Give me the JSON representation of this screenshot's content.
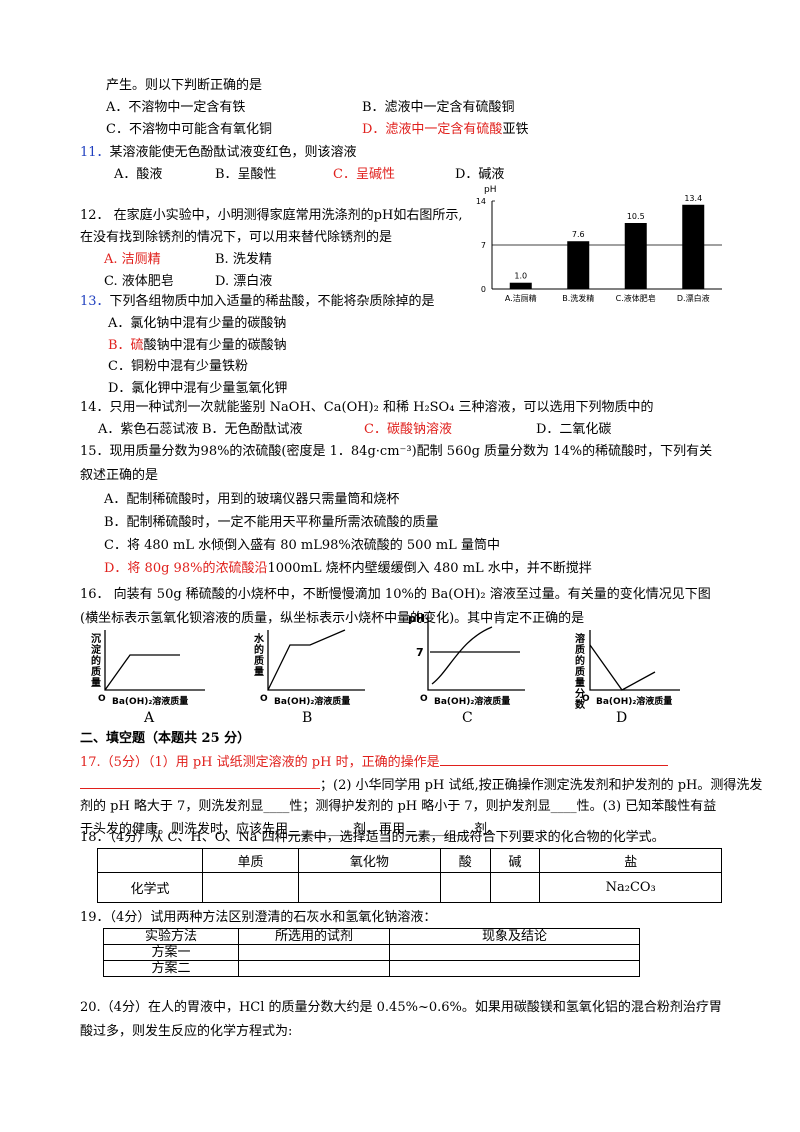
{
  "q10": {
    "tail": "产生。则以下判断正确的是",
    "options": [
      "A．不溶物中一定含有铁",
      "B．滤液中一定含有硫酸铜",
      "C．不溶物中可能含有氧化铜"
    ],
    "option_d_red": "D．滤液中一定含有硫酸",
    "option_d_rest": "亚铁"
  },
  "q11": {
    "number": "11．",
    "stem": "某溶液能使无色酚酞试液变红色，则该溶液",
    "options": [
      "A．酸液",
      "B．呈酸性",
      "C．呈碱性",
      "D．碱液"
    ]
  },
  "q12": {
    "stem": [
      "12． 在家庭小实验中，小明测得家庭常用洗涤剂的pH如右图所示,",
      "在没有找到除锈剂的情况下，可以用来替代除锈剂的是"
    ],
    "options": [
      "A. 洁厕精",
      "B. 洗发精",
      "C. 液体肥皂",
      "D. 漂白液"
    ],
    "chart": {
      "type": "bar",
      "y_label": "pH",
      "categories": [
        "A.洁厕精",
        "B.洗发精",
        "C.液体肥皂",
        "D.漂白液"
      ],
      "values": [
        1.0,
        7.6,
        10.5,
        13.4
      ],
      "value_labels": [
        "1.0",
        "7.6",
        "10.5",
        "13.4"
      ],
      "ylim": [
        0,
        14
      ],
      "yticks": [
        0,
        7,
        14
      ],
      "color": "#000000"
    }
  },
  "q13": {
    "number": "13．",
    "stem": "下列各组物质中加入适量的稀盐酸，不能将杂质除掉的是",
    "option_a": "A．氯化钠中混有少量的碳酸钠",
    "option_b_red": "B．硫",
    "option_b_rest": "酸钠中混有少量的碳酸钠",
    "option_c": "C．铜粉中混有少量铁粉",
    "option_d": "D．氯化钾中混有少量氢氧化钾"
  },
  "q14": {
    "stem": "14．只用一种试剂一次就能鉴别 NaOH、Ca(OH)₂ 和稀 H₂SO₄ 三种溶液，可以选用下列物质中的",
    "options": [
      "A．紫色石蕊试液",
      "B．无色酚酞试液",
      "C．碳酸钠溶液",
      "D．二氧化碳"
    ]
  },
  "q15": {
    "stem": [
      "15．现用质量分数为98%的浓硫酸(密度是 1．84g·cm⁻³)配制 560g 质量分数为 14%的稀硫酸时，下列有关",
      "叙述正确的是"
    ],
    "options": [
      "A．配制稀硫酸时，用到的玻璃仪器只需量筒和烧杯",
      "B．配制稀硫酸时，一定不能用天平称量所需浓硫酸的质量",
      "C．将 480 mL 水倾倒入盛有 80 mL98%浓硫酸的 500 mL 量筒中"
    ],
    "option_d_red": "D．将 80g 98%的浓硫酸沿",
    "option_d_rest": "1000mL 烧杯内壁缓缓倒入 480 mL 水中，并不断搅拌"
  },
  "q16": {
    "stem": [
      "16． 向装有 50g 稀硫酸的小烧杯中，不断慢慢滴加 10%的 Ba(OH)₂ 溶液至过量。有关量的变化情况见下图",
      "(横坐标表示氢氧化钡溶液的质量，纵坐标表示小烧杯中量的变化)。其中肯定不正确的是"
    ],
    "graphs": [
      {
        "y_label": "沉淀的质量",
        "x_label": "Ba(OH)₂溶液质量",
        "origin": "O",
        "letter": "A"
      },
      {
        "y_label": "水的质量",
        "x_label": "Ba(OH)₂溶液质量",
        "origin": "O",
        "letter": "B"
      },
      {
        "y_label": "pH",
        "x_label": "Ba(OH)₂溶液质量",
        "origin": "O",
        "letter": "C",
        "mark": "7"
      },
      {
        "y_label": "溶质的质量分数",
        "x_label": "Ba(OH)₂溶液质量",
        "origin": "O",
        "letter": "D"
      }
    ]
  },
  "section": "二、填空题（本题共 25 分）",
  "q17": {
    "red": "17.（5分）（1）用 pH 试纸测定溶液的 pH 时，正确的操作是",
    "lines": [
      "；(2) 小华同学用 pH 试纸,按正确操作测定洗发剂和护发剂的 pH。测得洗发",
      "剂的 pH 略大于 7，则洗发剂显____性；测得护发剂的 pH 略小于 7，则护发剂显____性。(3) 已知苯酸性有益",
      "于头发的健康。则洗发时，应该先用__________剂，再用 __________剂。"
    ]
  },
  "q18": {
    "stem": "18．（4分）从 C、H、O、Na 四种元素中，选择适当的元素，组成符合下列要求的化合物的化学式。",
    "headers": [
      "单质",
      "氧化物",
      "酸",
      "碱",
      "盐"
    ],
    "row_label": "化学式",
    "salt": "Na₂CO₃"
  },
  "q19": {
    "stem": "19．（4分）试用两种方法区别澄清的石灰水和氢氧化钠溶液：",
    "headers": [
      "实验方法",
      "所选用的试剂",
      "现象及结论"
    ],
    "rows": [
      "方案一",
      "方案二"
    ]
  },
  "q20": {
    "lines": [
      "20.（4分）在人的胃液中，HCl 的质量分数大约是 0.45%~0.6%。如果用碳酸镁和氢氧化铝的混合粉剂治疗胃",
      "酸过多，则发生反应的化学方程式为:"
    ]
  }
}
